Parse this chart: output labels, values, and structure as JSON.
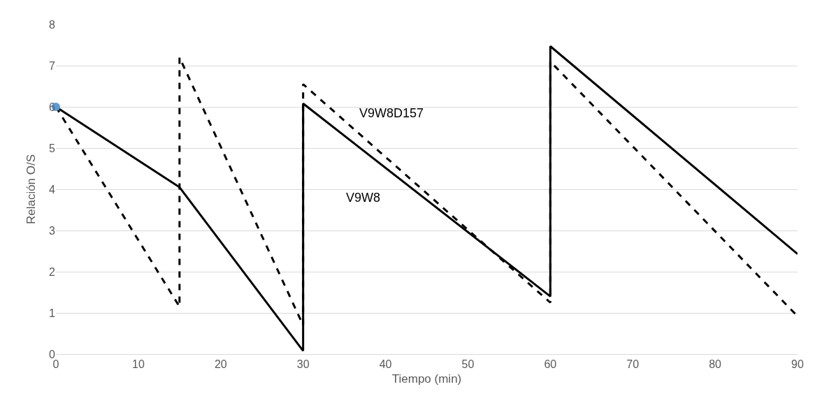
{
  "chart_data": {
    "type": "line",
    "xlabel": "Tiempo (min)",
    "ylabel": "Relación O/S",
    "xlim": [
      0,
      90
    ],
    "xticks": [
      0,
      10,
      20,
      30,
      40,
      50,
      60,
      70,
      80,
      90
    ],
    "ylim": [
      0,
      8
    ],
    "yticks": [
      0,
      1,
      2,
      3,
      4,
      5,
      6,
      7,
      8
    ],
    "grid": "y",
    "legend": false,
    "marker": "none",
    "series": [
      {
        "name": "V9W8",
        "color": "#000000",
        "line_style": "solid",
        "x": [
          0,
          15,
          30,
          30,
          60,
          60,
          90
        ],
        "values": [
          6,
          4.05,
          0.08,
          6.08,
          1.4,
          7.47,
          2.43
        ]
      },
      {
        "name": "V9W8D157",
        "color": "#000000",
        "line_style": "dashed",
        "x": [
          0,
          15,
          15,
          30,
          30,
          60,
          60,
          90
        ],
        "values": [
          6,
          1.15,
          7.2,
          0.7,
          6.55,
          1.25,
          7.1,
          0.92
        ]
      },
      {
        "type": "scatter",
        "color": "#5b9bd5",
        "marker": "circle",
        "x": [
          0
        ],
        "values": [
          6
        ]
      }
    ]
  }
}
